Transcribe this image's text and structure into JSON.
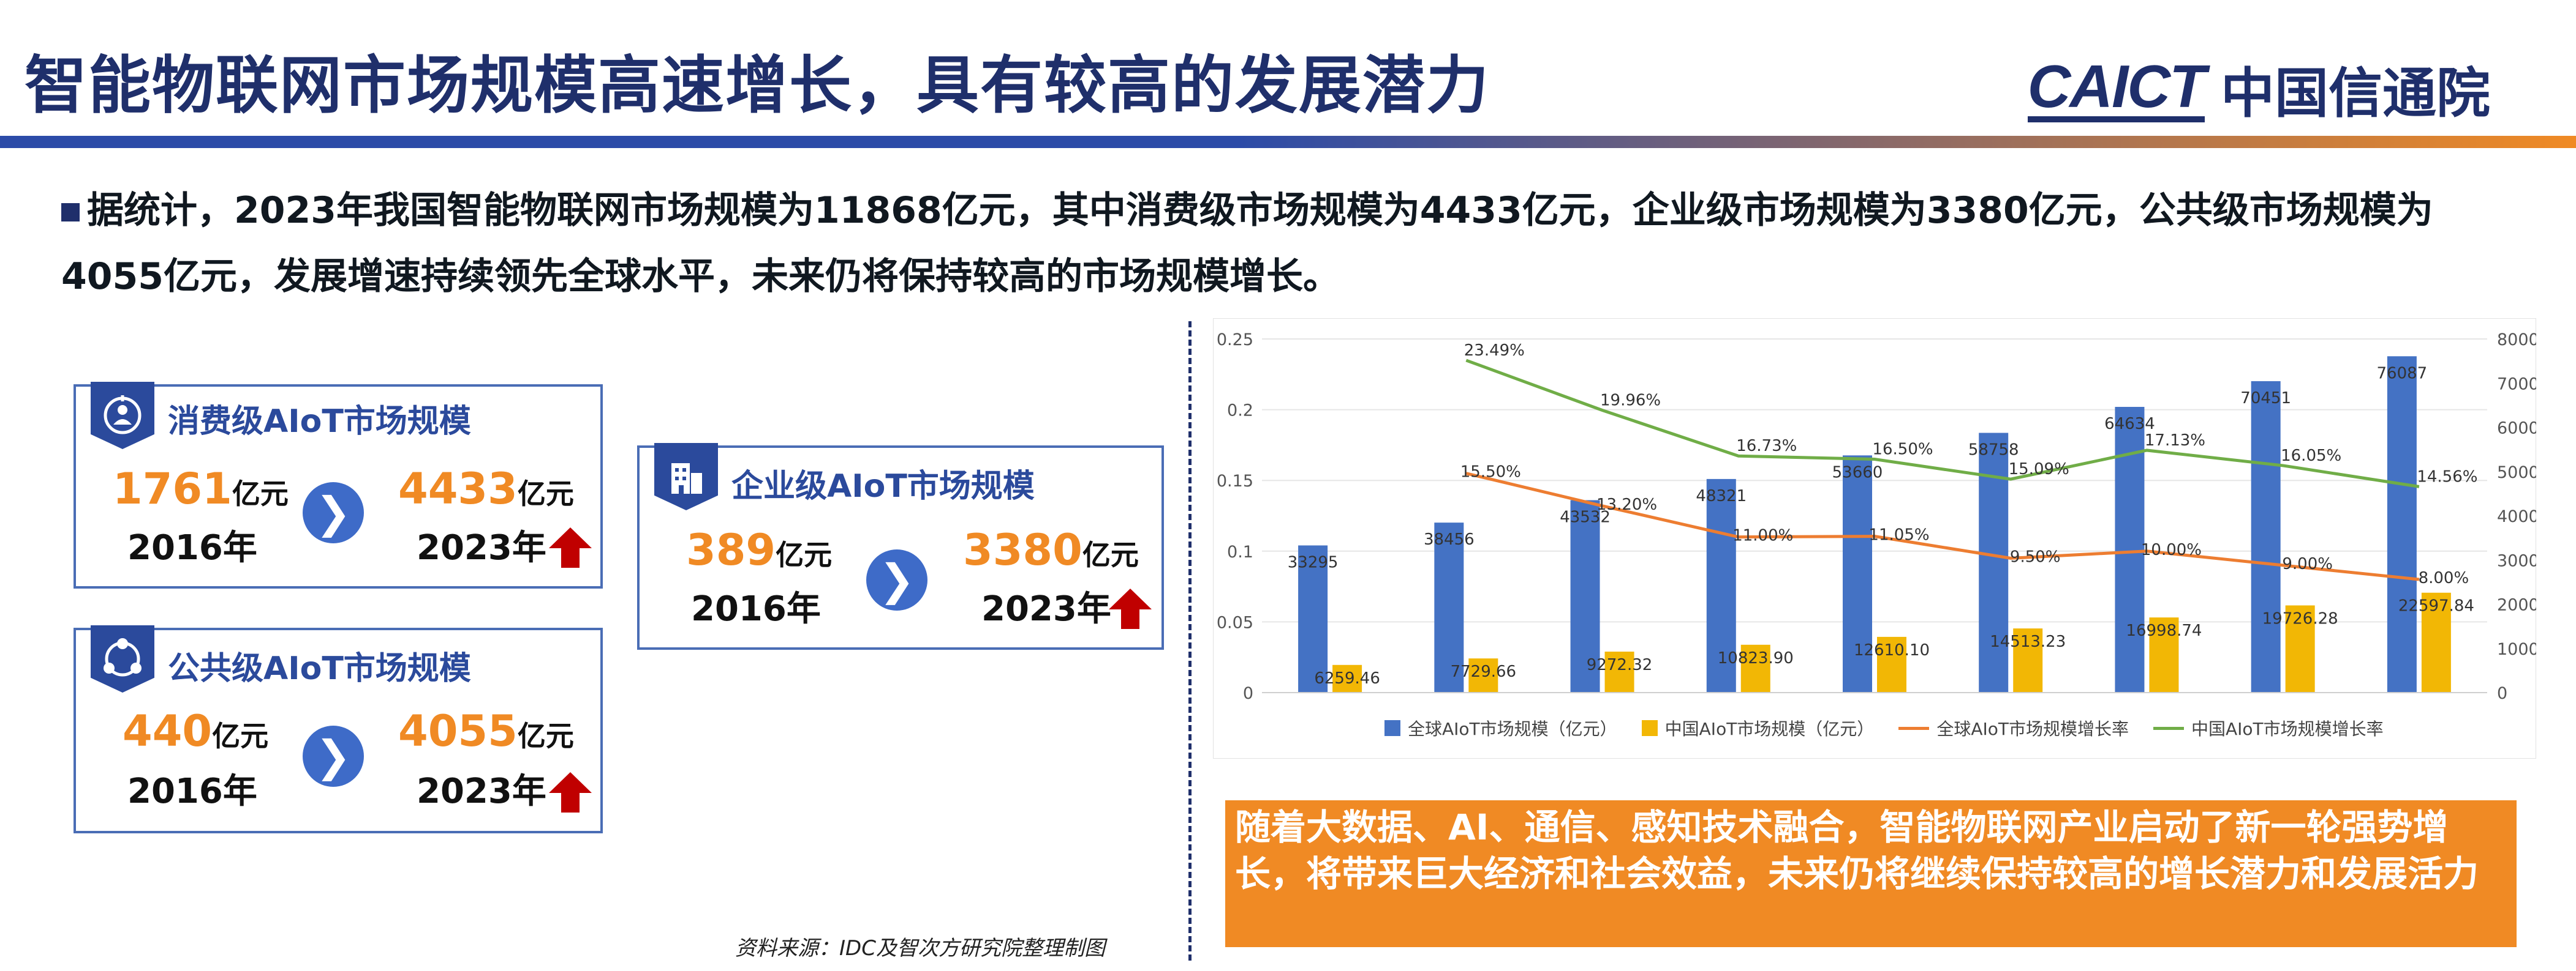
{
  "header": {
    "title": "智能物联网市场规模高速增长，具有较高的发展潜力",
    "logo_en": "CAICT",
    "logo_cn": "中国信通院"
  },
  "intro": {
    "text": "据统计，2023年我国智能物联网市场规模为11868亿元，其中消费级市场规模为4433亿元，企业级市场规模为3380亿元，公共级市场规模为4055亿元，发展增速持续领先全球水平，未来仍将保持较高的市场规模增长。"
  },
  "cards": {
    "consumer": {
      "title": "消费级AIoT市场规模",
      "from_value": "1761",
      "from_unit": "亿元",
      "from_year": "2016年",
      "to_value": "4433",
      "to_unit": "亿元",
      "to_year": "2023年",
      "icon": "people-target-icon"
    },
    "enterprise": {
      "title": "企业级AIoT市场规模",
      "from_value": "389",
      "from_unit": "亿元",
      "from_year": "2016年",
      "to_value": "3380",
      "to_unit": "亿元",
      "to_year": "2023年",
      "icon": "building-icon"
    },
    "public": {
      "title": "公共级AIoT市场规模",
      "from_value": "440",
      "from_unit": "亿元",
      "from_year": "2016年",
      "to_value": "4055",
      "to_unit": "亿元",
      "to_year": "2023年",
      "icon": "network-icon"
    },
    "arrow_glyph": "❯"
  },
  "source": "资料来源：IDC及智次方研究院整理制图",
  "summary": "随着大数据、AI、通信、感知技术融合，智能物联网产业启动了新一轮强势增长，将带来巨大经济和社会效益，未来仍将继续保持较高的增长潜力和发展活力",
  "colors": {
    "navy": "#1f2f6b",
    "accent_orange": "#f08a24",
    "bar_blue": "#4472c4",
    "bar_gold": "#f2b705",
    "line_orange": "#ed7d31",
    "line_green": "#70ad47",
    "up_arrow": "#c00000"
  },
  "chart_data": {
    "type": "bar",
    "title": "",
    "xlabel": "",
    "ylabel": "",
    "y_left_lim": [
      0,
      0.25
    ],
    "y_left_ticks": [
      "0",
      "0.05",
      "0.1",
      "0.15",
      "0.2",
      "0.25"
    ],
    "y_right_lim": [
      0,
      80000
    ],
    "y_right_ticks": [
      "0",
      "10000",
      "20000",
      "30000",
      "40000",
      "50000",
      "60000",
      "70000",
      "80000"
    ],
    "series": [
      {
        "name": "全球AIoT市场规模（亿元）",
        "kind": "bar",
        "axis": "right",
        "values": [
          33295,
          38456,
          43532,
          48321,
          53660,
          58758,
          64634,
          70451,
          76087
        ],
        "labels": [
          "33295",
          "38456",
          "43532",
          "48321",
          "53660",
          "58758",
          "64634",
          "70451",
          "76087"
        ]
      },
      {
        "name": "中国AIoT市场规模（亿元）",
        "kind": "bar",
        "axis": "right",
        "values": [
          6259.46,
          7729.66,
          9272.32,
          10823.9,
          12610.1,
          14513.23,
          16998.74,
          19726.28,
          22597.84
        ],
        "labels": [
          "6259.46",
          "7729.66",
          "9272.32",
          "10823.90",
          "12610.10",
          "14513.23",
          "16998.74",
          "19726.28",
          "22597.84"
        ]
      },
      {
        "name": "全球AIoT市场规模增长率",
        "kind": "line",
        "axis": "left",
        "start_index": 1,
        "values": [
          0.155,
          0.132,
          0.11,
          0.1105,
          0.095,
          0.1,
          0.09,
          0.08
        ],
        "labels": [
          "15.50%",
          "13.20%",
          "11.00%",
          "11.05%",
          "9.50%",
          "10.00%",
          "9.00%",
          "8.00%"
        ]
      },
      {
        "name": "中国AIoT市场规模增长率",
        "kind": "line",
        "axis": "left",
        "start_index": 1,
        "values": [
          0.2349,
          0.1996,
          0.1673,
          0.165,
          0.1509,
          0.1713,
          0.1605,
          0.1456
        ],
        "labels": [
          "23.49%",
          "19.96%",
          "16.73%",
          "16.50%",
          "15.09%",
          "17.13%",
          "16.05%",
          "14.56%"
        ]
      }
    ],
    "grid": true,
    "legend_position": "bottom"
  }
}
